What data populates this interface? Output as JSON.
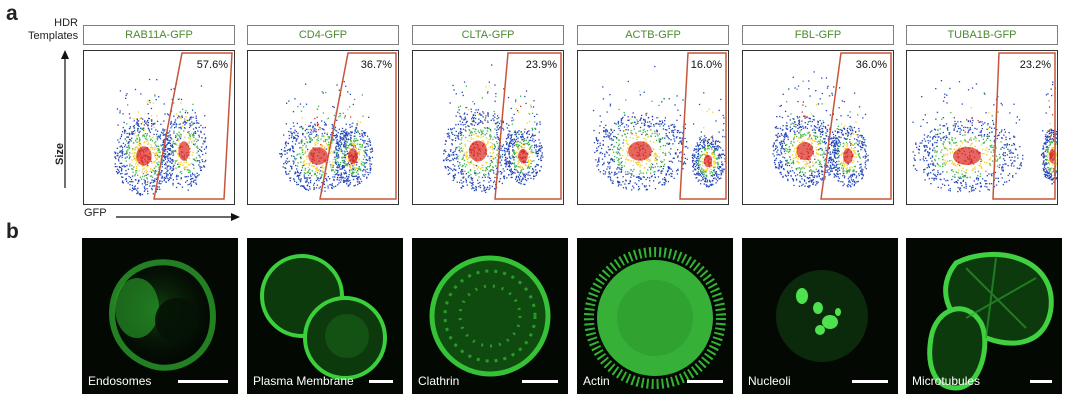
{
  "figure": {
    "panel_a_label": "a",
    "panel_b_label": "b",
    "hdr_label_line1": "HDR",
    "hdr_label_line2": "Templates",
    "y_axis_label": "Size",
    "x_axis_label": "GFP"
  },
  "chart_data": {
    "type": "scatter",
    "title": "",
    "xlabel": "GFP",
    "ylabel": "Size",
    "panels": [
      {
        "template": "RAB11A-GFP",
        "gfp_positive_percent": "57.6%"
      },
      {
        "template": "CD4-GFP",
        "gfp_positive_percent": "36.7%"
      },
      {
        "template": "CLTA-GFP",
        "gfp_positive_percent": "23.9%"
      },
      {
        "template": "ACTB-GFP",
        "gfp_positive_percent": "16.0%"
      },
      {
        "template": "FBL-GFP",
        "gfp_positive_percent": "36.0%"
      },
      {
        "template": "TUBA1B-GFP",
        "gfp_positive_percent": "23.2%"
      }
    ]
  },
  "micrographs": [
    {
      "label": "Endosomes",
      "color": "#39d13a"
    },
    {
      "label": "Plasma Membrane",
      "color": "#39d13a"
    },
    {
      "label": "Clathrin",
      "color": "#39d13a"
    },
    {
      "label": "Actin",
      "color": "#39d13a"
    },
    {
      "label": "Nucleoli",
      "color": "#39d13a"
    },
    {
      "label": "Microtubules",
      "color": "#39d13a"
    }
  ]
}
